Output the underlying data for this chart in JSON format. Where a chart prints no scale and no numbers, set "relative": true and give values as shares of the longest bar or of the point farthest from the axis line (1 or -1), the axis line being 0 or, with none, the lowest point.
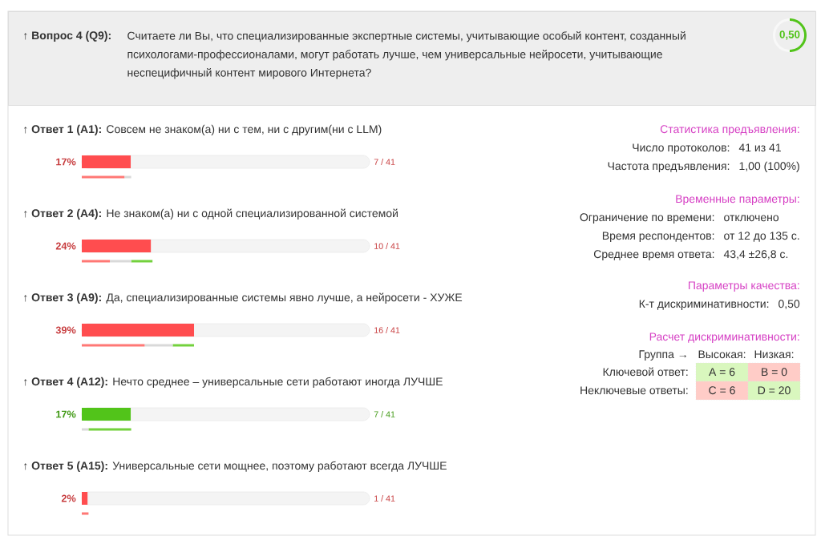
{
  "chart_data": [
    {
      "type": "bar",
      "orientation": "horizontal",
      "title": "↑ **Вопрос 4 (Q9):**",
      "subtitle": "Считаете ли Вы, что специализированные экспертные системы, учитывающие особый контент, созданный психологами-профессионалами, могут работать лучше, чем универсальные нейросети, учитывающие неспецифичный контент мирового Интернета?",
      "categories": [
        "↑ **Ответ 1 (A1):** Совсем не знаком(а) ни с тем, ни с другим(ни с LLM)",
        "↑ **Ответ 2 (A4):** Не знаком(а) ни с одной специализированной системой",
        "↑ **Ответ 3 (A9):** Да, специализированные системы явно лучше, а нейросети - ХУЖЕ",
        "↑ **Ответ 4 (A12):** Нечто среднее – универсальные сети работают иногда ЛУЧШЕ",
        "↑ **Ответ 5 (A15):** Универсальные сети мощнее, поэтому работают всегда ЛУЧШЕ"
      ],
      "values": [
        17,
        24,
        39,
        17,
        2
      ],
      "colors": [
        "#ff4d4f",
        "#ff4d4f",
        "#ff4d4f",
        "#52c41a",
        "#ff4d4f"
      ],
      "value_labels": [
        "17%",
        "24%",
        "39%",
        "17%",
        "2%"
      ],
      "xlim": [
        0,
        100
      ],
      "annotations": [
        "7 / 41",
        "10 / 41",
        "16 / 41",
        "7 / 41",
        "1 / 41"
      ]
    },
    {
      "type": "bar",
      "orientation": "horizontal",
      "stacked": true,
      "relative": true,
      "categories": [
        null,
        null,
        null,
        null,
        null
      ],
      "series": [
        {
          "color": "#ff7875",
          "values": [
            0.38,
            0.25,
            0.56,
            0,
            0.06
          ]
        },
        {
          "color": "#d9d9d9",
          "values": [
            0.06,
            0.19,
            0.25,
            0.06,
            0
          ]
        },
        {
          "color": "#73d13d",
          "values": [
            0,
            0.19,
            0.19,
            0.38,
            0
          ]
        }
      ]
    },
    {
      "type": "donut",
      "categories": [
        null,
        null
      ],
      "values": [
        50,
        50
      ],
      "colors": [
        "#52c41a",
        "#f8f8f8"
      ],
      "annotations": [
        "0,50"
      ]
    },
    {
      "type": "other",
      "title": "Статистика предъявления:",
      "annotations": [
        "Число протоколов:",
        "41 из 41",
        "Частота предъявления:",
        "1,00 (100%)"
      ]
    },
    {
      "type": "other",
      "title": "Временные параметры:",
      "annotations": [
        "Ограничение по времени:",
        "отключено",
        "Время респондентов:",
        "от 12 до 135 с.",
        "Среднее время ответа:",
        "43,4 ±26,8 с."
      ]
    },
    {
      "type": "other",
      "title": "Параметры качества:",
      "annotations": [
        "К-т дискриминативности:",
        "0,50"
      ]
    },
    {
      "type": "other",
      "title": "Расчет дискриминативности:",
      "annotations": [
        "Группа →",
        "Высокая:",
        "Низкая:",
        "Ключевой ответ:",
        "A = 6",
        "B = 0",
        "Неключевые ответы:",
        "C = 6",
        "D = 20"
      ],
      "colors": [
        "#d9f7be",
        "#ffccc7",
        "#ffccc7",
        "#d9f7be"
      ]
    }
  ]
}
